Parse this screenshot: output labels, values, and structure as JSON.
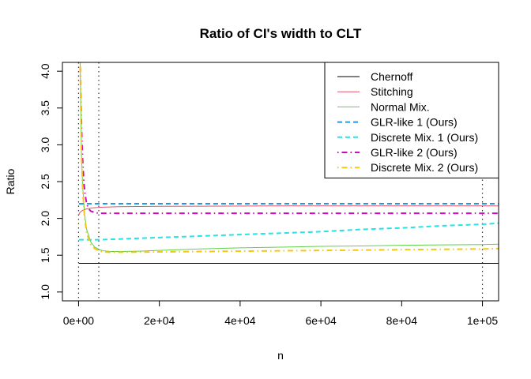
{
  "chart_data": {
    "type": "line",
    "title": "Ratio of CI's width to CLT",
    "xlabel": "n",
    "ylabel": "Ratio",
    "xlim": [
      -4000,
      104000
    ],
    "ylim": [
      0.88,
      4.12
    ],
    "x_ticks": [
      0,
      20000,
      40000,
      60000,
      80000,
      100000
    ],
    "x_tick_labels": [
      "0e+00",
      "2e+04",
      "4e+04",
      "6e+04",
      "8e+04",
      "1e+05"
    ],
    "y_ticks": [
      1.0,
      1.5,
      2.0,
      2.5,
      3.0,
      3.5,
      4.0
    ],
    "y_tick_labels": [
      "1.0",
      "1.5",
      "2.0",
      "2.5",
      "3.0",
      "3.5",
      "4.0"
    ],
    "vlines": [
      0,
      5000,
      100000
    ],
    "legend_position": "top-right",
    "series": [
      {
        "name": "Chernoff",
        "color": "#000000",
        "dash": "solid",
        "width": 1,
        "x": [
          100,
          500,
          2000,
          5000,
          20000,
          50000,
          100000,
          104000
        ],
        "y": [
          1.39,
          1.39,
          1.39,
          1.39,
          1.39,
          1.39,
          1.39,
          1.39
        ]
      },
      {
        "name": "Stitching",
        "color": "#df536b",
        "dash": "solid",
        "width": 1,
        "x": [
          100,
          200,
          500,
          1000,
          2000,
          3000,
          5000,
          10000,
          20000,
          50000,
          100000,
          104000
        ],
        "y": [
          2.05,
          2.07,
          2.09,
          2.11,
          2.13,
          2.14,
          2.15,
          2.16,
          2.165,
          2.17,
          2.17,
          2.17
        ]
      },
      {
        "name": "Normal Mix.",
        "color": "#61d04f",
        "dash": "solid",
        "width": 1,
        "x": [
          400,
          700,
          1000,
          1500,
          2000,
          3000,
          4000,
          5000,
          6000,
          8000,
          10000,
          15000,
          20000,
          30000,
          40000,
          50000,
          60000,
          70000,
          80000,
          90000,
          100000,
          104000
        ],
        "y": [
          4.12,
          2.9,
          2.45,
          2.05,
          1.85,
          1.68,
          1.61,
          1.58,
          1.56,
          1.55,
          1.55,
          1.555,
          1.565,
          1.585,
          1.6,
          1.61,
          1.62,
          1.625,
          1.635,
          1.64,
          1.645,
          1.65
        ]
      },
      {
        "name": "GLR-like 1 (Ours)",
        "color": "#2297e6",
        "dash": "dashed",
        "width": 2,
        "x": [
          100,
          500,
          1000,
          5000,
          20000,
          50000,
          100000,
          104000
        ],
        "y": [
          2.2,
          2.2,
          2.2,
          2.2,
          2.2,
          2.2,
          2.2,
          2.2
        ]
      },
      {
        "name": "Discrete Mix. 1 (Ours)",
        "color": "#28e2e5",
        "dash": "dashed",
        "width": 2,
        "x": [
          100,
          1000,
          5000,
          10000,
          20000,
          30000,
          40000,
          50000,
          60000,
          70000,
          80000,
          90000,
          100000,
          104000
        ],
        "y": [
          1.71,
          1.71,
          1.71,
          1.72,
          1.74,
          1.76,
          1.78,
          1.8,
          1.82,
          1.85,
          1.87,
          1.9,
          1.92,
          1.935
        ]
      },
      {
        "name": "GLR-like 2 (Ours)",
        "color": "#cd0bbc",
        "dash": "dotdash",
        "width": 2,
        "x": [
          400,
          600,
          800,
          1000,
          1300,
          1600,
          2000,
          2500,
          3000,
          4000,
          5000,
          10000,
          50000,
          100000,
          104000
        ],
        "y": [
          4.12,
          3.55,
          3.1,
          2.8,
          2.5,
          2.33,
          2.2,
          2.13,
          2.1,
          2.08,
          2.07,
          2.07,
          2.07,
          2.07,
          2.07
        ]
      },
      {
        "name": "Discrete Mix. 2 (Ours)",
        "color": "#f5c710",
        "dash": "dotdash",
        "width": 2,
        "x": [
          400,
          700,
          1000,
          1500,
          2000,
          3000,
          4000,
          5000,
          6000,
          8000,
          10000,
          20000,
          30000,
          40000,
          50000,
          60000,
          70000,
          80000,
          90000,
          100000,
          104000
        ],
        "y": [
          4.12,
          2.9,
          2.4,
          2.0,
          1.8,
          1.65,
          1.59,
          1.56,
          1.545,
          1.54,
          1.54,
          1.545,
          1.55,
          1.555,
          1.56,
          1.565,
          1.57,
          1.575,
          1.58,
          1.585,
          1.59
        ]
      }
    ]
  }
}
